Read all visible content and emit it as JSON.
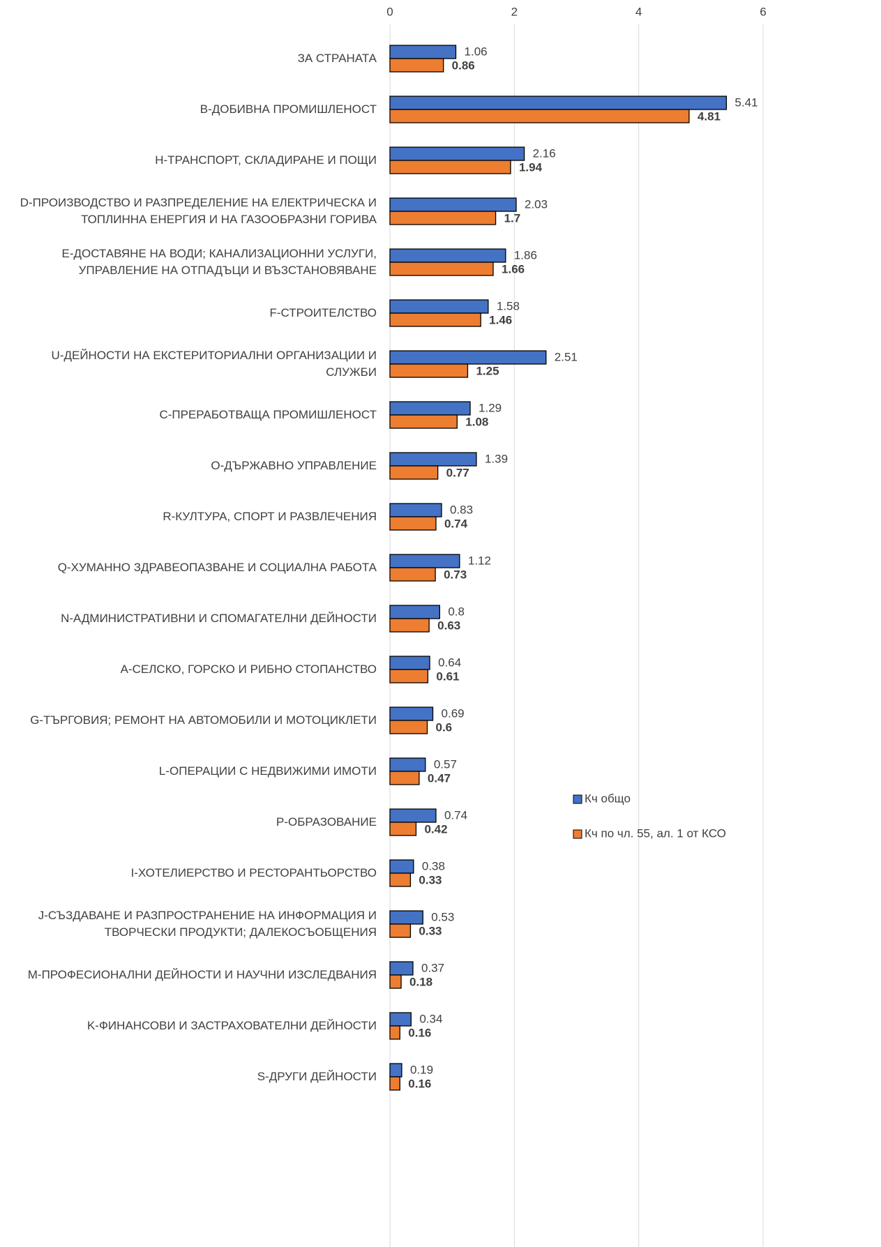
{
  "chart_data": {
    "type": "bar",
    "orientation": "horizontal",
    "categories": [
      "ЗА СТРАНАТА",
      "B-ДОБИВНА ПРОМИШЛЕНОСТ",
      "H-ТРАНСПОРТ, СКЛАДИРАНЕ И ПОЩИ",
      "D-ПРОИЗВОДСТВО И РАЗПРЕДЕЛЕНИЕ НА ЕЛЕКТРИЧЕСКА И ТОПЛИННА ЕНЕРГИЯ И НА ГАЗООБРАЗНИ ГОРИВА",
      "E-ДОСТАВЯНЕ НА ВОДИ; КАНАЛИЗАЦИОННИ УСЛУГИ, УПРАВЛЕНИЕ НА ОТПАДЪЦИ И ВЪЗСТАНОВЯВАНЕ",
      "F-СТРОИТЕЛСТВО",
      "U-ДЕЙНОСТИ НА ЕКСТЕРИТОРИАЛНИ ОРГАНИЗАЦИИ И СЛУЖБИ",
      "C-ПРЕРАБОТВАЩА ПРОМИШЛЕНОСТ",
      "O-ДЪРЖАВНО УПРАВЛЕНИЕ",
      "R-КУЛТУРА, СПОРТ И РАЗВЛЕЧЕНИЯ",
      "Q-ХУМАННО ЗДРАВЕОПАЗВАНЕ И СОЦИАЛНА РАБОТА",
      "N-АДМИНИСТРАТИВНИ И СПОМАГАТЕЛНИ ДЕЙНОСТИ",
      "A-СЕЛСКО, ГОРСКО И РИБНО СТОПАНСТВО",
      "G-ТЪРГОВИЯ; РЕМОНТ НА АВТОМОБИЛИ И МОТОЦИКЛЕТИ",
      "L-ОПЕРАЦИИ С НЕДВИЖИМИ ИМОТИ",
      "P-ОБРАЗОВАНИЕ",
      "I-ХОТЕЛИЕРСТВО И РЕСТОРАНТЬОРСТВО",
      "J-СЪЗДАВАНЕ И РАЗПРОСТРАНЕНИЕ НА ИНФОРМАЦИЯ И ТВОРЧЕСКИ ПРОДУКТИ; ДАЛЕКОСЪОБЩЕНИЯ",
      "M-ПРОФЕСИОНАЛНИ ДЕЙНОСТИ И НАУЧНИ ИЗСЛЕДВАНИЯ",
      "K-ФИНАНСОВИ И ЗАСТРАХОВАТЕЛНИ ДЕЙНОСТИ",
      "S-ДРУГИ ДЕЙНОСТИ"
    ],
    "series": [
      {
        "name": "Кч общо",
        "color": "#4472c4",
        "values": [
          1.06,
          5.41,
          2.16,
          2.03,
          1.86,
          1.58,
          2.51,
          1.29,
          1.39,
          0.83,
          1.12,
          0.8,
          0.64,
          0.69,
          0.57,
          0.74,
          0.38,
          0.53,
          0.37,
          0.34,
          0.19
        ]
      },
      {
        "name": "Кч по чл. 55, ал. 1 от КСО",
        "color": "#ed7d31",
        "values": [
          0.86,
          4.81,
          1.94,
          1.7,
          1.66,
          1.46,
          1.25,
          1.08,
          0.77,
          0.74,
          0.73,
          0.63,
          0.61,
          0.6,
          0.47,
          0.42,
          0.33,
          0.33,
          0.18,
          0.16,
          0.16
        ]
      }
    ],
    "xlim": [
      0,
      6
    ],
    "xticks": [
      0,
      2,
      4,
      6
    ],
    "grid": true,
    "legend_position": "right"
  }
}
